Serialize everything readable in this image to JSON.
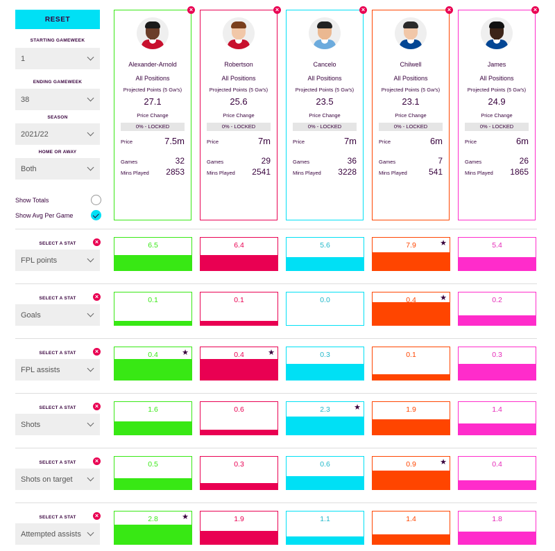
{
  "controls": {
    "reset_label": "RESET",
    "starting_gameweek_label": "STARTING GAMEWEEK",
    "starting_gameweek_value": "1",
    "ending_gameweek_label": "ENDING GAMEWEEK",
    "ending_gameweek_value": "38",
    "season_label": "SEASON",
    "season_value": "2021/22",
    "home_away_label": "HOME OR AWAY",
    "home_away_value": "Both",
    "show_totals_label": "Show Totals",
    "show_totals_checked": false,
    "show_avg_label": "Show Avg Per Game",
    "show_avg_checked": true
  },
  "card_labels": {
    "positions": "All Positions",
    "projected_label": "Projected Points (5 Gw's)",
    "price_change_label": "Price Change",
    "locked": "0% - LOCKED",
    "price_label": "Price",
    "games_label": "Games",
    "mins_label": "Mins Played"
  },
  "players": [
    {
      "name": "Alexander-Arnold",
      "projected": "27.1",
      "price": "7.5m",
      "games": "32",
      "mins": "2853",
      "color": "#38e814",
      "shirt": "#c8102e",
      "skin": "#6b3e2a",
      "hair": "#1a1a1a"
    },
    {
      "name": "Robertson",
      "projected": "25.6",
      "price": "7m",
      "games": "29",
      "mins": "2541",
      "color": "#e90052",
      "shirt": "#c8102e",
      "skin": "#f1c7a8",
      "hair": "#7a3f1d"
    },
    {
      "name": "Cancelo",
      "projected": "23.5",
      "price": "7m",
      "games": "36",
      "mins": "3228",
      "color": "#00e0f5",
      "shirt": "#6cabdd",
      "skin": "#eab891",
      "hair": "#222222"
    },
    {
      "name": "Chilwell",
      "projected": "23.1",
      "price": "6m",
      "games": "7",
      "mins": "541",
      "color": "#ff4500",
      "shirt": "#034694",
      "skin": "#f1c7a8",
      "hair": "#2a2a2a"
    },
    {
      "name": "James",
      "projected": "24.9",
      "price": "6m",
      "games": "26",
      "mins": "1865",
      "color": "#ff2ccb",
      "shirt": "#034694",
      "skin": "#3c2418",
      "hair": "#111111"
    }
  ],
  "stat_select_label": "SELECT A STAT",
  "stats": [
    {
      "name": "FPL points",
      "values": [
        "6.5",
        "6.4",
        "5.6",
        "7.9",
        "5.4"
      ],
      "fills": [
        0.46,
        0.46,
        0.4,
        0.56,
        0.4
      ],
      "best": 3
    },
    {
      "name": "Goals",
      "values": [
        "0.1",
        "0.1",
        "0.0",
        "0.4",
        "0.2"
      ],
      "fills": [
        0.13,
        0.13,
        0.0,
        0.7,
        0.3
      ],
      "best": 3
    },
    {
      "name": "FPL assists",
      "values": [
        "0.4",
        "0.4",
        "0.3",
        "0.1",
        "0.3"
      ],
      "fills": [
        0.64,
        0.64,
        0.48,
        0.16,
        0.48
      ],
      "best": 0,
      "best2": 1
    },
    {
      "name": "Shots",
      "values": [
        "1.6",
        "0.6",
        "2.3",
        "1.9",
        "1.4"
      ],
      "fills": [
        0.4,
        0.15,
        0.56,
        0.47,
        0.34
      ],
      "best": 2
    },
    {
      "name": "Shots on target",
      "values": [
        "0.5",
        "0.3",
        "0.6",
        "0.9",
        "0.4"
      ],
      "fills": [
        0.34,
        0.2,
        0.4,
        0.58,
        0.27
      ],
      "best": 3
    },
    {
      "name": "Attempted assists",
      "values": [
        "2.8",
        "1.9",
        "1.1",
        "1.4",
        "1.8"
      ],
      "fills": [
        0.6,
        0.4,
        0.24,
        0.3,
        0.38
      ],
      "best": 0
    }
  ]
}
